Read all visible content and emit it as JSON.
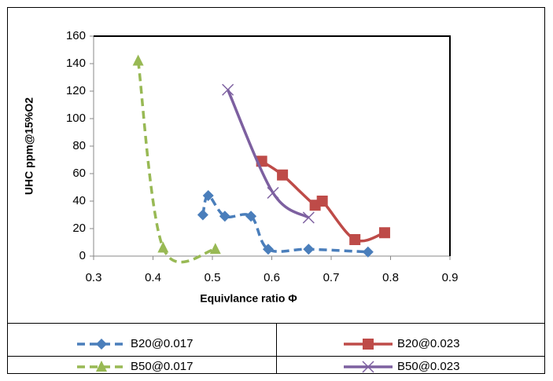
{
  "chart_data": {
    "type": "scatter",
    "x_label": "Equivlance ratio Φ",
    "y_label": "UHC ppm@15%O2",
    "xlim": [
      0.3,
      0.9
    ],
    "xticks": [
      0.3,
      0.4,
      0.5,
      0.6,
      0.7,
      0.8,
      0.9
    ],
    "ylim": [
      0,
      160
    ],
    "yticks": [
      0,
      20,
      40,
      60,
      80,
      100,
      120,
      140,
      160
    ],
    "smooth": true,
    "series": [
      {
        "name": "B20@0.017",
        "color": "#4a7ebb",
        "marker": "diamond",
        "dashed": true,
        "x": [
          0.484,
          0.493,
          0.521,
          0.565,
          0.594,
          0.662,
          0.762
        ],
        "values": [
          30,
          44,
          29,
          29,
          5,
          5,
          3
        ]
      },
      {
        "name": "B20@0.023",
        "color": "#be4b48",
        "marker": "square",
        "dashed": false,
        "x": [
          0.583,
          0.618,
          0.673,
          0.685,
          0.74,
          0.79
        ],
        "values": [
          69,
          59,
          37,
          40,
          12,
          17
        ]
      },
      {
        "name": "B50@0.017",
        "color": "#98b954",
        "marker": "triangle",
        "dashed": true,
        "x": [
          0.375,
          0.417,
          0.505
        ],
        "values": [
          142,
          6,
          5
        ]
      },
      {
        "name": "B50@0.023",
        "color": "#7d60a0",
        "marker": "x",
        "dashed": false,
        "x": [
          0.526,
          0.602,
          0.662
        ],
        "values": [
          121,
          46,
          28
        ]
      }
    ]
  }
}
